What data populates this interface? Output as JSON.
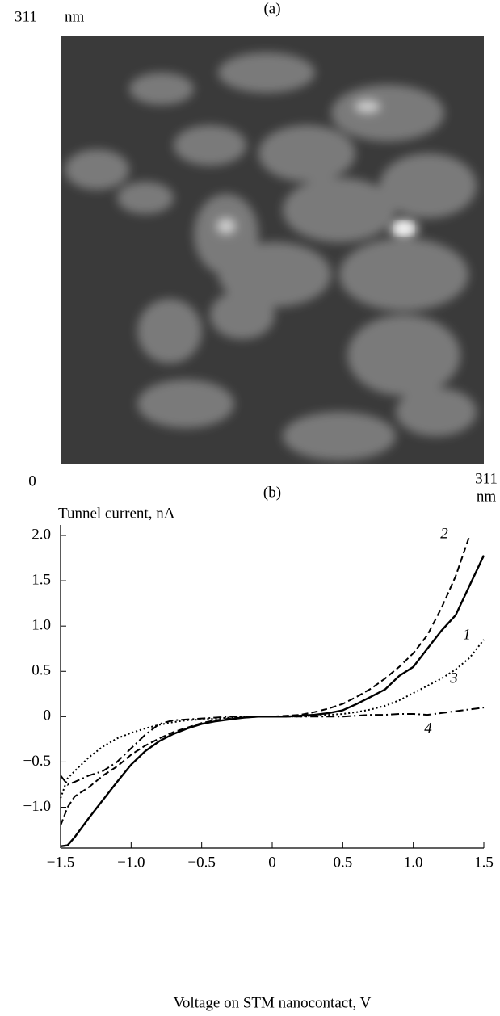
{
  "chart_data": [
    {
      "type": "image",
      "title": "(a)",
      "xlabel": "nm",
      "ylabel": "nm",
      "xlim": [
        0,
        311
      ],
      "ylim": [
        0,
        311
      ],
      "xticks": [
        0,
        311
      ],
      "yticks": [
        311
      ]
    },
    {
      "type": "line",
      "title": "(b)",
      "ylabel": "Tunnel current, nA",
      "xlabel": "Voltage on STM nanocontact, V",
      "xlim": [
        -1.5,
        1.5
      ],
      "ylim": [
        -1.45,
        2.0
      ],
      "xticks": [
        {
          "value": -1.5,
          "label": "−1.5"
        },
        {
          "value": -1,
          "label": "−1.0"
        },
        {
          "value": -0.5,
          "label": "−0.5"
        },
        0,
        0.5,
        {
          "value": 1,
          "label": "1.0"
        },
        1.5
      ],
      "yticks": [
        {
          "value": -1,
          "label": "−1.0"
        },
        {
          "value": -0.5,
          "label": "−0.5"
        },
        0,
        0.5,
        {
          "value": 1,
          "label": "1.0"
        },
        1.5,
        {
          "value": 2,
          "label": "2.0"
        }
      ],
      "x": [
        -1.5,
        -1.45,
        -1.4,
        -1.3,
        -1.2,
        -1.1,
        -1.0,
        -0.9,
        -0.8,
        -0.7,
        -0.6,
        -0.5,
        -0.4,
        -0.3,
        -0.2,
        -0.1,
        0,
        0.1,
        0.2,
        0.3,
        0.4,
        0.5,
        0.6,
        0.7,
        0.8,
        0.9,
        1.0,
        1.1,
        1.2,
        1.3,
        1.4,
        1.5
      ],
      "series": [
        {
          "name": "1",
          "color": "#000000",
          "style": "solid",
          "values": [
            -1.43,
            -1.42,
            -1.33,
            -1.12,
            -0.92,
            -0.72,
            -0.53,
            -0.38,
            -0.27,
            -0.19,
            -0.13,
            -0.08,
            -0.05,
            -0.03,
            -0.01,
            0,
            0,
            0,
            0.01,
            0.02,
            0.04,
            0.07,
            0.14,
            0.22,
            0.3,
            0.45,
            0.55,
            0.75,
            0.95,
            1.12,
            1.45,
            1.78
          ]
        },
        {
          "name": "2",
          "color": "#000000",
          "style": "dashed",
          "values": [
            -1.2,
            -1.0,
            -0.88,
            -0.78,
            -0.65,
            -0.55,
            -0.42,
            -0.32,
            -0.24,
            -0.17,
            -0.12,
            -0.07,
            -0.04,
            -0.02,
            -0.01,
            0,
            0,
            0.01,
            0.02,
            0.05,
            0.09,
            0.14,
            0.22,
            0.31,
            0.42,
            0.55,
            0.7,
            0.9,
            1.2,
            1.55,
            2.0,
            null
          ]
        },
        {
          "name": "3",
          "color": "#000000",
          "style": "dotted",
          "values": [
            -0.9,
            -0.68,
            -0.6,
            -0.45,
            -0.33,
            -0.24,
            -0.18,
            -0.13,
            -0.09,
            -0.06,
            -0.04,
            -0.03,
            -0.02,
            -0.01,
            0,
            0,
            0,
            0,
            0,
            0.01,
            0.02,
            0.03,
            0.05,
            0.08,
            0.12,
            0.18,
            0.26,
            0.34,
            0.42,
            0.52,
            0.65,
            0.85
          ]
        },
        {
          "name": "4",
          "color": "#000000",
          "style": "dashdot",
          "values": [
            -0.65,
            -0.75,
            -0.72,
            -0.65,
            -0.6,
            -0.5,
            -0.35,
            -0.2,
            -0.08,
            -0.04,
            -0.03,
            -0.02,
            -0.01,
            0,
            0,
            0,
            0,
            0,
            0,
            0,
            0,
            0,
            0.01,
            0.02,
            0.02,
            0.03,
            0.03,
            0.02,
            0.04,
            0.06,
            0.08,
            0.1
          ]
        }
      ]
    }
  ]
}
